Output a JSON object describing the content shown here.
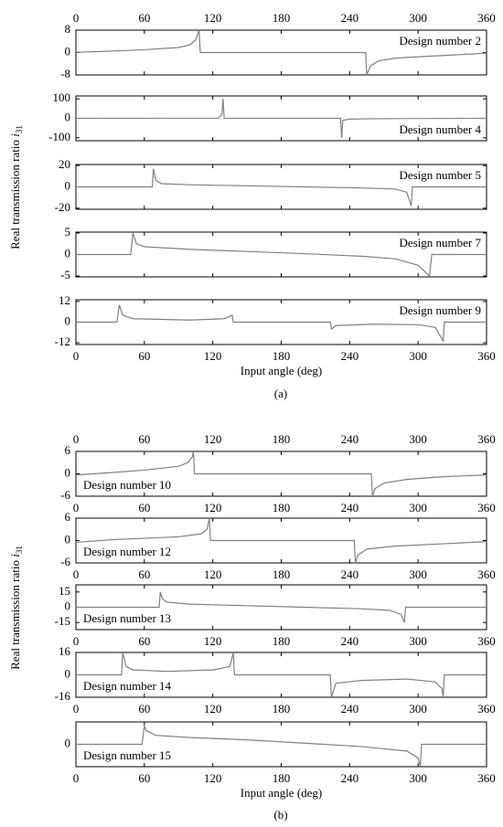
{
  "figure_labels": [
    {
      "ylabel": "Real transmission ratio ",
      "ylabel_var": "i",
      "ylabel_sub": "31",
      "caption": "(a)"
    },
    {
      "ylabel": "Real transmission ratio ",
      "ylabel_var": "i",
      "ylabel_sub": "31",
      "caption": "(b)"
    }
  ],
  "chart_data": [
    {
      "type": "line",
      "annotation": "Design number 2",
      "annotation_corner": "upper right",
      "xtick_labels": "top",
      "color": "#808080",
      "xlim": [
        0,
        360
      ],
      "xticks": [
        0,
        60,
        120,
        180,
        240,
        300,
        360
      ],
      "ylim": [
        -8,
        8
      ],
      "yticks": [
        8,
        0,
        -8
      ],
      "x": [
        0,
        30,
        60,
        90,
        100,
        105,
        108,
        109,
        254,
        255,
        258,
        265,
        280,
        300,
        330,
        360
      ],
      "values": [
        0.1,
        0.5,
        1,
        1.8,
        2.8,
        4.5,
        8,
        0,
        0,
        -8,
        -5,
        -3,
        -2,
        -1.5,
        -0.9,
        -0.2
      ]
    },
    {
      "type": "line",
      "annotation": "Design number 4",
      "annotation_corner": "lower right",
      "xtick_labels": "none",
      "color": "#808080",
      "xlim": [
        0,
        360
      ],
      "xticks": [
        0,
        60,
        120,
        180,
        240,
        300,
        360
      ],
      "ylim": [
        -115,
        115
      ],
      "yticks": [
        100,
        0,
        -100
      ],
      "x": [
        0,
        125,
        128,
        129,
        130,
        232,
        233,
        234,
        240,
        260,
        300,
        360
      ],
      "values": [
        0,
        1,
        20,
        100,
        0,
        0,
        -100,
        -10,
        -4,
        -2,
        -1,
        0
      ]
    },
    {
      "type": "line",
      "annotation": "Design number 5",
      "annotation_corner": "upper right",
      "xtick_labels": "none",
      "color": "#808080",
      "xlim": [
        0,
        360
      ],
      "xticks": [
        0,
        60,
        120,
        180,
        240,
        300,
        360
      ],
      "ylim": [
        -21,
        21
      ],
      "yticks": [
        20,
        0,
        -20
      ],
      "x": [
        0,
        67,
        68,
        70,
        75,
        100,
        150,
        200,
        250,
        280,
        290,
        294,
        295,
        360
      ],
      "values": [
        0,
        0,
        17,
        6,
        3,
        2,
        1,
        0,
        -1,
        -2,
        -5,
        -18,
        0,
        0
      ]
    },
    {
      "type": "line",
      "annotation": "Design number 7",
      "annotation_corner": "upper right",
      "xtick_labels": "none",
      "color": "#808080",
      "xlim": [
        0,
        360
      ],
      "xticks": [
        0,
        60,
        120,
        180,
        240,
        300,
        360
      ],
      "ylim": [
        -5.2,
        5.2
      ],
      "yticks": [
        5,
        0,
        -5
      ],
      "x": [
        0,
        48,
        50,
        53,
        60,
        100,
        150,
        200,
        250,
        280,
        300,
        310,
        312,
        360
      ],
      "values": [
        0,
        0,
        5,
        2.5,
        1.8,
        1.2,
        0.7,
        0.2,
        -0.4,
        -1,
        -2.5,
        -5,
        0,
        0
      ]
    },
    {
      "type": "line",
      "annotation": "Design number 9",
      "annotation_corner": "upper right",
      "xtick_labels": "bottom",
      "xlabel": "Input angle (deg)",
      "color": "#808080",
      "xlim": [
        0,
        360
      ],
      "xticks": [
        0,
        60,
        120,
        180,
        240,
        300,
        360
      ],
      "ylim": [
        -13,
        13
      ],
      "yticks": [
        12,
        0,
        -12
      ],
      "x": [
        0,
        36,
        38,
        41,
        50,
        100,
        130,
        137,
        138,
        223,
        224,
        228,
        260,
        300,
        315,
        322,
        323,
        360
      ],
      "values": [
        0,
        0,
        10,
        4,
        2,
        1.2,
        2,
        4,
        0,
        0,
        -4,
        -2,
        -1.2,
        -1.5,
        -3,
        -11,
        0,
        0
      ]
    },
    {
      "type": "line",
      "annotation": "Design number 10",
      "annotation_corner": "lower left",
      "xtick_labels": "both",
      "color": "#808080",
      "xlim": [
        0,
        360
      ],
      "xticks": [
        0,
        60,
        120,
        180,
        240,
        300,
        360
      ],
      "ylim": [
        -6,
        6
      ],
      "yticks": [
        6,
        0,
        -6
      ],
      "x": [
        0,
        30,
        60,
        90,
        98,
        102,
        103,
        104,
        259,
        260,
        262,
        270,
        290,
        320,
        360
      ],
      "values": [
        -0.3,
        0.3,
        1,
        2,
        3,
        4.5,
        6,
        0,
        0,
        -6,
        -4,
        -2.5,
        -1.5,
        -0.8,
        -0.3
      ]
    },
    {
      "type": "line",
      "annotation": "Design number 12",
      "annotation_corner": "lower left",
      "xtick_labels": "bottom",
      "color": "#808080",
      "xlim": [
        0,
        360
      ],
      "xticks": [
        0,
        60,
        120,
        180,
        240,
        300,
        360
      ],
      "ylim": [
        -6,
        6
      ],
      "yticks": [
        6,
        0,
        -6
      ],
      "x": [
        0,
        30,
        60,
        90,
        110,
        115,
        117,
        118,
        244,
        245,
        247,
        255,
        280,
        320,
        360
      ],
      "values": [
        -0.5,
        0.2,
        0.6,
        1,
        1.8,
        3,
        6,
        0,
        0,
        -6,
        -4,
        -2.3,
        -1.5,
        -0.9,
        -0.3
      ]
    },
    {
      "type": "line",
      "annotation": "Design number 13",
      "annotation_corner": "lower left",
      "xtick_labels": "bottom",
      "color": "#808080",
      "xlim": [
        0,
        360
      ],
      "xticks": [
        0,
        60,
        120,
        180,
        240,
        300,
        360
      ],
      "ylim": [
        -22,
        22
      ],
      "yticks": [
        15,
        0,
        -15
      ],
      "x": [
        0,
        73,
        74,
        76,
        80,
        100,
        150,
        200,
        250,
        275,
        285,
        288,
        289,
        360
      ],
      "values": [
        0,
        0,
        15,
        8,
        5,
        3,
        1.5,
        0,
        -1.5,
        -3,
        -7,
        -15,
        0,
        0
      ]
    },
    {
      "type": "line",
      "annotation": "Design number 14",
      "annotation_corner": "lower left",
      "xtick_labels": "bottom",
      "color": "#808080",
      "xlim": [
        0,
        360
      ],
      "xticks": [
        0,
        60,
        120,
        180,
        240,
        300,
        360
      ],
      "ylim": [
        -16,
        16
      ],
      "yticks": [
        16,
        0,
        -16
      ],
      "x": [
        0,
        40,
        41,
        44,
        50,
        80,
        120,
        135,
        138,
        139,
        223,
        224,
        228,
        250,
        290,
        315,
        321,
        322,
        323,
        360
      ],
      "values": [
        0,
        0,
        16,
        6,
        3.5,
        2.5,
        3.5,
        6,
        16,
        0,
        0,
        -16,
        -6,
        -4,
        -3,
        -5,
        -10,
        -16,
        0,
        0
      ]
    },
    {
      "type": "line",
      "annotation": "Design number 15",
      "annotation_corner": "lower left",
      "xtick_labels": "bottom",
      "xlabel": "Input angle (deg)",
      "color": "#808080",
      "xlim": [
        0,
        360
      ],
      "xticks": [
        0,
        60,
        120,
        180,
        240,
        300,
        360
      ],
      "ylim": [
        -10,
        10
      ],
      "yticks": [
        0
      ],
      "x": [
        0,
        58,
        60,
        62,
        70,
        100,
        150,
        200,
        250,
        290,
        300,
        302,
        303,
        360
      ],
      "values": [
        0,
        0,
        8,
        6,
        4,
        3,
        2,
        0.5,
        -1,
        -3,
        -6,
        -10,
        0,
        0
      ]
    }
  ]
}
